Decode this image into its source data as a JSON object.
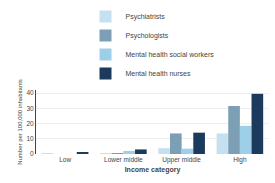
{
  "chart_data": {
    "type": "bar",
    "categories": [
      "Low",
      "Lower middle",
      "Upper middle",
      "High"
    ],
    "series": [
      {
        "name": "Psychiatrists",
        "color": "#c5e0f0",
        "values": [
          0.05,
          0.45,
          3.8,
          13.5
        ]
      },
      {
        "name": "Psychologists",
        "color": "#7c9fb5",
        "values": [
          0.0,
          0.6,
          13.5,
          31.5
        ]
      },
      {
        "name": "Mental health social workers",
        "color": "#9dcfe8",
        "values": [
          0.0,
          2.0,
          3.5,
          18.5
        ]
      },
      {
        "name": "Mental health nurses",
        "color": "#1b3a5c",
        "values": [
          0.7,
          3.0,
          14.0,
          39.5
        ]
      }
    ],
    "xlabel": "Income category",
    "ylabel": "Number per 100,000 inhabitants",
    "ylim": [
      0,
      42
    ],
    "yticks": [
      0,
      10,
      20,
      30,
      40
    ],
    "grid": true,
    "legend": "top"
  }
}
